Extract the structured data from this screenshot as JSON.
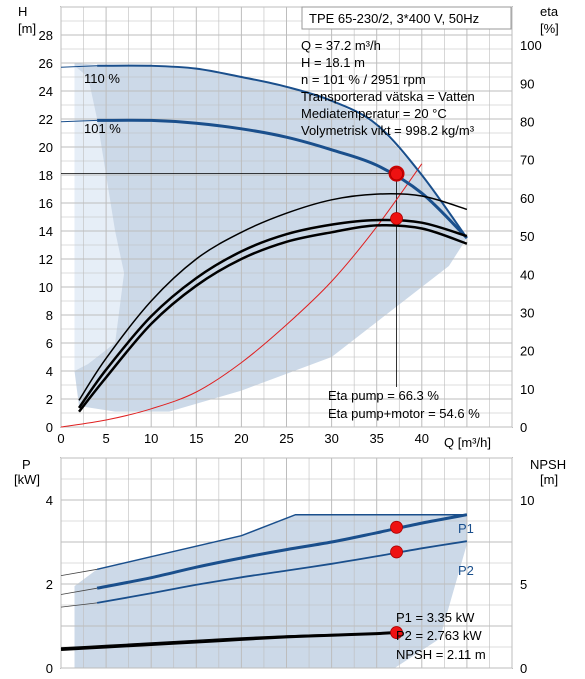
{
  "colors": {
    "envelope": "#ccd9e8",
    "envelope_light": "#e6eef7",
    "blue_curve": "#1a4f8c",
    "black_curve": "#000000",
    "system_curve": "#e02020",
    "marker": "#ee1111",
    "grid": "#bdbdbd"
  },
  "chart_data": [
    {
      "type": "line",
      "title": "TPE 65-230/2, 3*400 V, 50Hz",
      "x_label": "Q [m³/h]",
      "y_left_label_top": "H",
      "y_left_label_unit": "[m]",
      "y_right_label_top": "eta",
      "y_right_label_unit": "[%]",
      "xlim": [
        0,
        50
      ],
      "ylim_left": [
        0,
        30
      ],
      "ylim_right": [
        0,
        110
      ],
      "x_ticks": [
        0,
        5,
        10,
        15,
        20,
        25,
        30,
        35,
        40
      ],
      "y_left_ticks": [
        0,
        2,
        4,
        6,
        8,
        10,
        12,
        14,
        16,
        18,
        20,
        22,
        24,
        26,
        28
      ],
      "y_right_ticks": [
        0,
        10,
        20,
        30,
        40,
        50,
        60,
        70,
        80,
        90,
        100
      ],
      "grid": true,
      "info_lines": [
        "Q = 37.2 m³/h",
        "H = 18.1 m",
        "n = 101 % / 2951 rpm",
        "Transporterad vätska = Vatten",
        "Mediatemperatur = 20 °C",
        "Volymetrisk vikt = 998.2 kg/m³"
      ],
      "bottom_info": [
        "Eta pump = 66.3 %",
        "Eta pump+motor = 54.6 %"
      ],
      "series": [
        {
          "label": "110 %",
          "axis": "left",
          "x": [
            4,
            10,
            15,
            20,
            25,
            30,
            35,
            40,
            45
          ],
          "y": [
            25.8,
            25.8,
            25.6,
            25.0,
            24.3,
            23.3,
            21.6,
            18.0,
            13.5
          ]
        },
        {
          "label": "101 %",
          "axis": "left",
          "x": [
            4,
            10,
            15,
            20,
            25,
            30,
            35,
            40,
            45
          ],
          "y": [
            21.9,
            21.9,
            21.7,
            21.3,
            20.7,
            19.8,
            18.7,
            16.7,
            13.5
          ]
        },
        {
          "axis": "left",
          "x": [
            0,
            5,
            10,
            15,
            20,
            25,
            30,
            35,
            40
          ],
          "y": [
            0,
            0.5,
            1.3,
            2.5,
            4.6,
            7.3,
            10.4,
            14.3,
            18.8
          ]
        }
      ],
      "efficiency_curves": [
        {
          "axis": "right",
          "x": [
            2,
            5,
            10,
            15,
            20,
            25,
            30,
            35,
            40,
            45
          ],
          "y": [
            7,
            18,
            33,
            44,
            51,
            56,
            59.5,
            61,
            60.5,
            57
          ]
        },
        {
          "axis": "right",
          "x": [
            2,
            5,
            10,
            15,
            20,
            25,
            30,
            35,
            40,
            45
          ],
          "y": [
            5,
            15,
            29,
            39,
            46,
            50.5,
            53,
            54.2,
            53.5,
            50
          ]
        },
        {
          "axis": "right",
          "x": [
            2,
            5,
            10,
            15,
            20,
            25,
            30,
            35,
            40,
            45
          ],
          "y": [
            4,
            13,
            27,
            37,
            44,
            48.5,
            51,
            52.8,
            52,
            48
          ]
        }
      ],
      "operating_points": [
        {
          "x": 37.2,
          "y": 18.1,
          "axis": "left"
        },
        {
          "x": 37.2,
          "y": 66.3,
          "axis": "right"
        },
        {
          "x": 37.2,
          "y": 54.6,
          "axis": "right"
        }
      ]
    },
    {
      "type": "line",
      "y_left_label_top": "P",
      "y_left_label_unit": "[kW]",
      "y_right_label_top": "NPSH",
      "y_right_label_unit": "[m]",
      "xlim": [
        0,
        50
      ],
      "ylim_left": [
        0,
        5
      ],
      "ylim_right": [
        0,
        12.5
      ],
      "y_left_ticks": [
        0,
        2,
        4
      ],
      "y_right_ticks": [
        0,
        5,
        10
      ],
      "grid": true,
      "series_labels": [
        "P1",
        "P2"
      ],
      "bottom_info": [
        "P1 = 3.35 kW",
        "P2 = 2.763 kW",
        "NPSH = 2.11 m"
      ],
      "series": [
        {
          "label": "P1",
          "axis": "left",
          "x": [
            4,
            10,
            15,
            20,
            25,
            30,
            35,
            40,
            45
          ],
          "y": [
            1.9,
            2.15,
            2.4,
            2.62,
            2.82,
            3.0,
            3.22,
            3.45,
            3.65
          ]
        },
        {
          "label": "P2",
          "axis": "left",
          "x": [
            4,
            10,
            15,
            20,
            25,
            30,
            35,
            40,
            45
          ],
          "y": [
            1.55,
            1.78,
            1.98,
            2.16,
            2.32,
            2.48,
            2.66,
            2.85,
            3.02
          ]
        }
      ],
      "npsh_curves": [
        {
          "axis": "right",
          "x": [
            0,
            5,
            10,
            15,
            20,
            25,
            30,
            35,
            37.2
          ],
          "y": [
            1.1,
            1.25,
            1.4,
            1.55,
            1.7,
            1.85,
            1.95,
            2.05,
            2.11
          ]
        },
        {
          "axis": "right",
          "x": [
            0,
            5,
            10,
            15,
            20,
            25,
            30,
            35,
            37.2
          ],
          "y": [
            1.2,
            1.35,
            1.5,
            1.65,
            1.8,
            1.92,
            2.0,
            2.08,
            2.11
          ]
        }
      ],
      "operating_points": [
        {
          "x": 37.2,
          "y": 3.35,
          "axis": "left"
        },
        {
          "x": 37.2,
          "y": 2.763,
          "axis": "left"
        },
        {
          "x": 37.2,
          "y": 2.11,
          "axis": "right"
        }
      ]
    }
  ]
}
